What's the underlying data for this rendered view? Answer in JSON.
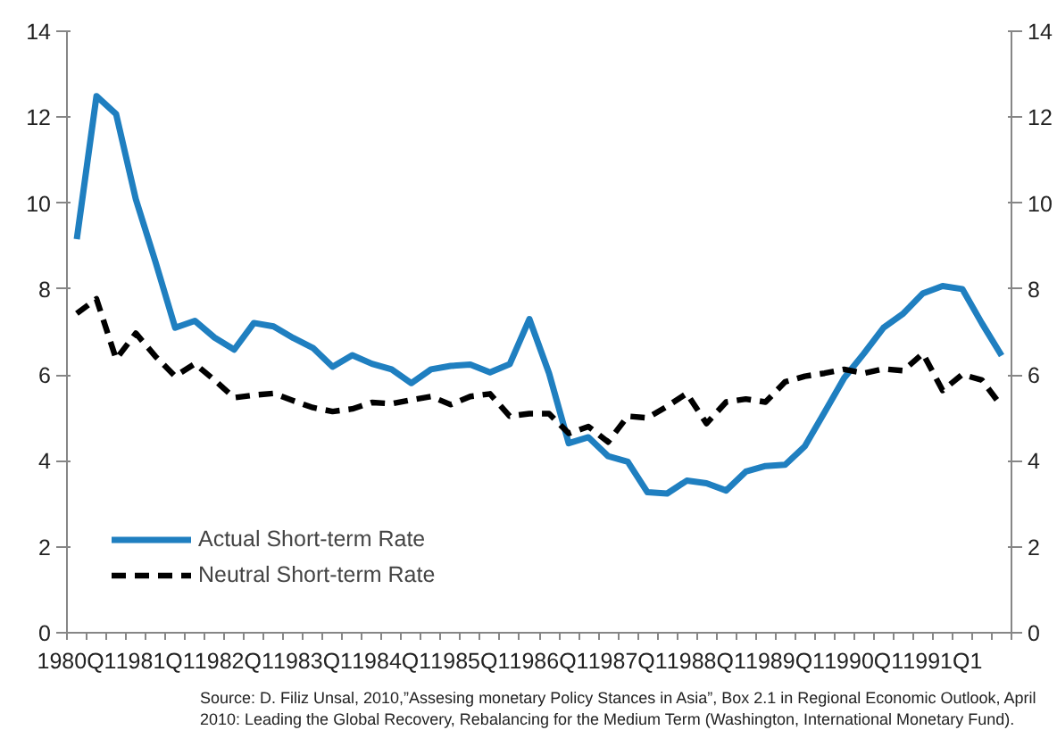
{
  "chart_data": {
    "type": "line",
    "categories": [
      "1980Q1",
      null,
      null,
      null,
      "1981Q1",
      null,
      null,
      null,
      "1982Q1",
      null,
      null,
      null,
      "1983Q1",
      null,
      null,
      null,
      "1984Q1",
      null,
      null,
      null,
      "1985Q1",
      null,
      null,
      null,
      "1986Q1",
      null,
      null,
      null,
      "1987Q1",
      null,
      null,
      null,
      "1988Q1",
      null,
      null,
      null,
      "1989Q1",
      null,
      null,
      null,
      "1990Q1",
      null,
      null,
      null,
      "1991Q1",
      null,
      null,
      null
    ],
    "series": [
      {
        "name": "Actual Short-term Rate",
        "color": "#1f7fc0",
        "line_style": "solid",
        "values": [
          9.16,
          12.49,
          12.07,
          10.09,
          8.63,
          7.1,
          7.26,
          6.87,
          6.59,
          7.21,
          7.13,
          6.86,
          6.63,
          6.19,
          6.46,
          6.26,
          6.13,
          5.81,
          6.13,
          6.21,
          6.24,
          6.06,
          6.25,
          7.3,
          6.04,
          4.41,
          4.55,
          4.11,
          3.98,
          3.27,
          3.24,
          3.54,
          3.48,
          3.31,
          3.75,
          3.88,
          3.91,
          4.34,
          5.13,
          5.93,
          6.5,
          7.1,
          7.43,
          7.9,
          8.07,
          8.0,
          7.2,
          6.45
        ]
      },
      {
        "name": "Neutral Short-term Rate",
        "color": "#000000",
        "line_style": "dashed",
        "values": [
          7.43,
          7.77,
          6.37,
          6.97,
          6.43,
          5.97,
          6.26,
          5.88,
          5.47,
          5.53,
          5.57,
          5.4,
          5.24,
          5.15,
          5.21,
          5.36,
          5.33,
          5.42,
          5.5,
          5.31,
          5.5,
          5.56,
          5.04,
          5.1,
          5.1,
          4.64,
          4.8,
          4.44,
          5.04,
          5.0,
          5.27,
          5.57,
          4.87,
          5.37,
          5.44,
          5.37,
          5.84,
          5.97,
          6.04,
          6.13,
          6.04,
          6.14,
          6.1,
          6.5,
          5.64,
          6.01,
          5.88,
          5.27
        ]
      }
    ],
    "ylim": [
      0,
      14
    ],
    "yticks": [
      0,
      2,
      4,
      6,
      8,
      10,
      12,
      14
    ],
    "y2lim": [
      0,
      14
    ],
    "y2ticks": [
      0,
      2,
      4,
      6,
      8,
      10,
      12,
      14
    ],
    "grid": false,
    "legend": "bottom left",
    "annotations": [
      "Source: D. Filiz Unsal, 2010,”Assesing monetary Policy Stances in Asia”, Box 2.1 in Regional Economic Outlook, April 2010: Leading the Global Recovery, Rebalancing for the Medium Term (Washington, International Monetary Fund)."
    ]
  }
}
